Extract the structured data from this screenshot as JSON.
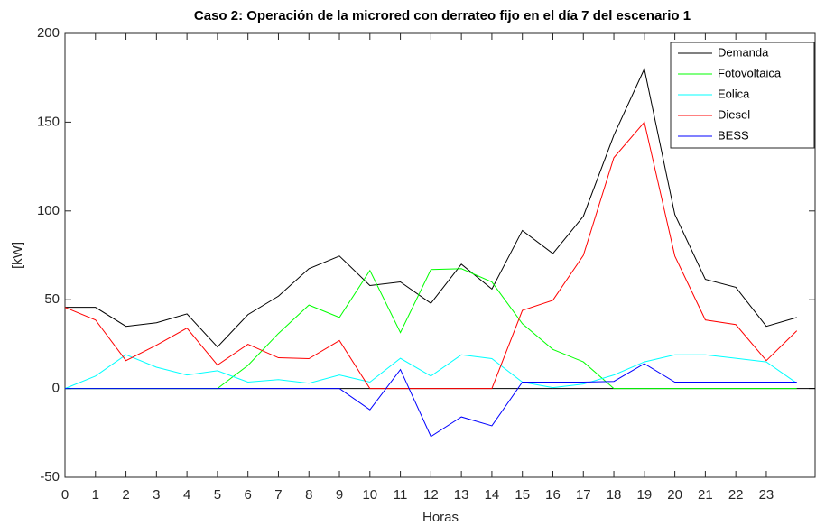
{
  "chart_data": {
    "type": "line",
    "title": "Caso 2: Operación de la microred con derrateo fijo en el día 7 del escenario 1",
    "x_label": "Horas",
    "y_label": "[kW]",
    "x": [
      0,
      1,
      2,
      3,
      4,
      5,
      6,
      7,
      8,
      9,
      10,
      11,
      12,
      13,
      14,
      15,
      16,
      17,
      18,
      19,
      20,
      21,
      22,
      23,
      24
    ],
    "series": [
      {
        "name": "Demanda",
        "color": "#000000",
        "values": [
          45.7,
          45.7,
          35,
          37,
          42,
          23.4,
          41.6,
          52,
          67.5,
          74.6,
          58,
          60,
          48,
          70,
          56,
          89,
          76,
          97,
          142.6,
          180,
          98,
          61.5,
          57,
          35,
          40
        ]
      },
      {
        "name": "Fotovoltaica",
        "color": "#00ff00",
        "values": [
          0,
          0,
          0,
          0,
          0,
          0,
          13,
          31,
          47,
          40,
          66.5,
          31.5,
          67,
          67.5,
          60,
          36.5,
          22,
          15,
          0,
          0,
          0,
          0,
          0,
          0,
          0
        ]
      },
      {
        "name": "Eolica",
        "color": "#00ffff",
        "values": [
          0,
          7,
          19,
          12,
          7.6,
          10,
          3.6,
          5,
          3,
          7.6,
          3.6,
          17,
          7,
          19,
          16.8,
          3.6,
          0.5,
          2.5,
          7.6,
          15,
          19,
          19,
          17,
          15,
          3
        ]
      },
      {
        "name": "Diesel",
        "color": "#ff0000",
        "values": [
          45.7,
          38.6,
          15.7,
          24.4,
          34,
          13.2,
          24.9,
          17.3,
          16.8,
          27,
          0,
          0,
          0,
          0,
          0,
          44,
          49.7,
          75,
          130,
          150,
          74.6,
          38.6,
          36,
          15.7,
          32.5
        ]
      },
      {
        "name": "BESS",
        "color": "#0000ff",
        "values": [
          0,
          0,
          0,
          0,
          0,
          0,
          0,
          0,
          0,
          0,
          -12,
          10.7,
          -27,
          -16,
          -21,
          3.6,
          3.6,
          3.6,
          4,
          14,
          3.6,
          3.6,
          3.6,
          3.6,
          3.6
        ]
      }
    ],
    "xlim": [
      0,
      24.6
    ],
    "xticks": [
      0,
      1,
      2,
      3,
      4,
      5,
      6,
      7,
      8,
      9,
      10,
      11,
      12,
      13,
      14,
      15,
      16,
      17,
      18,
      19,
      20,
      21,
      22,
      23
    ],
    "ylim": [
      -50,
      200
    ],
    "yticks": [
      -50,
      0,
      50,
      100,
      150,
      200
    ],
    "legend": "top-right"
  }
}
